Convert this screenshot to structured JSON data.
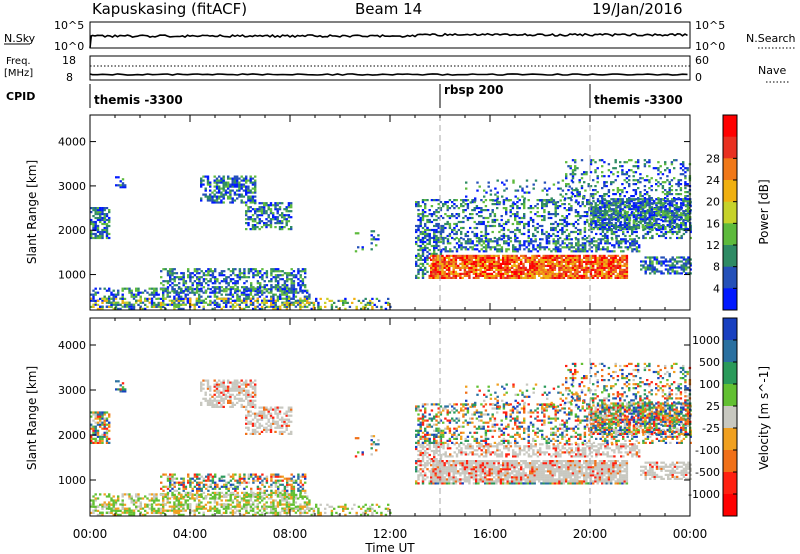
{
  "header": {
    "station": "Kapuskasing (fitACF)",
    "beam": "Beam 14",
    "date": "19/Jan/2016"
  },
  "strip_labels": {
    "nsky": "N.Sky",
    "nsearch": "N.Search",
    "freq_line1": "Freq.",
    "freq_line2": "[MHz]",
    "nave": "Nave",
    "cpid": "CPID",
    "nsky_ticks": [
      "10^5",
      "10^0"
    ],
    "nsearch_ticks": [
      "10^5",
      "10^0"
    ],
    "freq_ticks": [
      "18",
      "8"
    ],
    "nave_ticks": [
      "60",
      "0"
    ]
  },
  "cpid_segments": [
    {
      "label": "themis -3300",
      "start_h": 0
    },
    {
      "label": "rbsp 200",
      "start_h": 14
    },
    {
      "label": "themis -3300",
      "start_h": 20
    }
  ],
  "chart_data": [
    {
      "type": "heatmap",
      "name": "power",
      "ylabel": "Slant Range [km]",
      "xlabel": "Time UT",
      "x_ticks": [
        "00:00",
        "04:00",
        "08:00",
        "12:00",
        "16:00",
        "20:00",
        "00:00"
      ],
      "y_ticks": [
        "1000",
        "2000",
        "3000",
        "4000"
      ],
      "ylim": [
        200,
        4600
      ],
      "xlim_hours": [
        0,
        24
      ],
      "colorbar_label": "Power [dB]",
      "colorbar_ticks": [
        "4",
        "8",
        "12",
        "16",
        "20",
        "24",
        "28"
      ],
      "colorbar_colors": [
        "#0018ff",
        "#2450b8",
        "#2e8a64",
        "#5dba3c",
        "#c6d22a",
        "#f0b010",
        "#f07818",
        "#e83020",
        "#ff0000"
      ]
    },
    {
      "type": "heatmap",
      "name": "velocity",
      "ylabel": "Slant Range [km]",
      "xlabel": "Time UT",
      "x_ticks": [
        "00:00",
        "04:00",
        "08:00",
        "12:00",
        "16:00",
        "20:00",
        "00:00"
      ],
      "y_ticks": [
        "1000",
        "2000",
        "3000",
        "4000"
      ],
      "ylim": [
        200,
        4600
      ],
      "xlim_hours": [
        0,
        24
      ],
      "colorbar_label": "Velocity [m s^-1]",
      "colorbar_ticks": [
        "1000",
        "500",
        "100",
        "25",
        "-25",
        "-100",
        "-500",
        "-1000"
      ],
      "colorbar_colors": [
        "#1840c0",
        "#2a70a0",
        "#2a9a5a",
        "#62c032",
        "#c8c8c0",
        "#f0a020",
        "#f07018",
        "#ff2010",
        "#ff0000"
      ]
    }
  ]
}
